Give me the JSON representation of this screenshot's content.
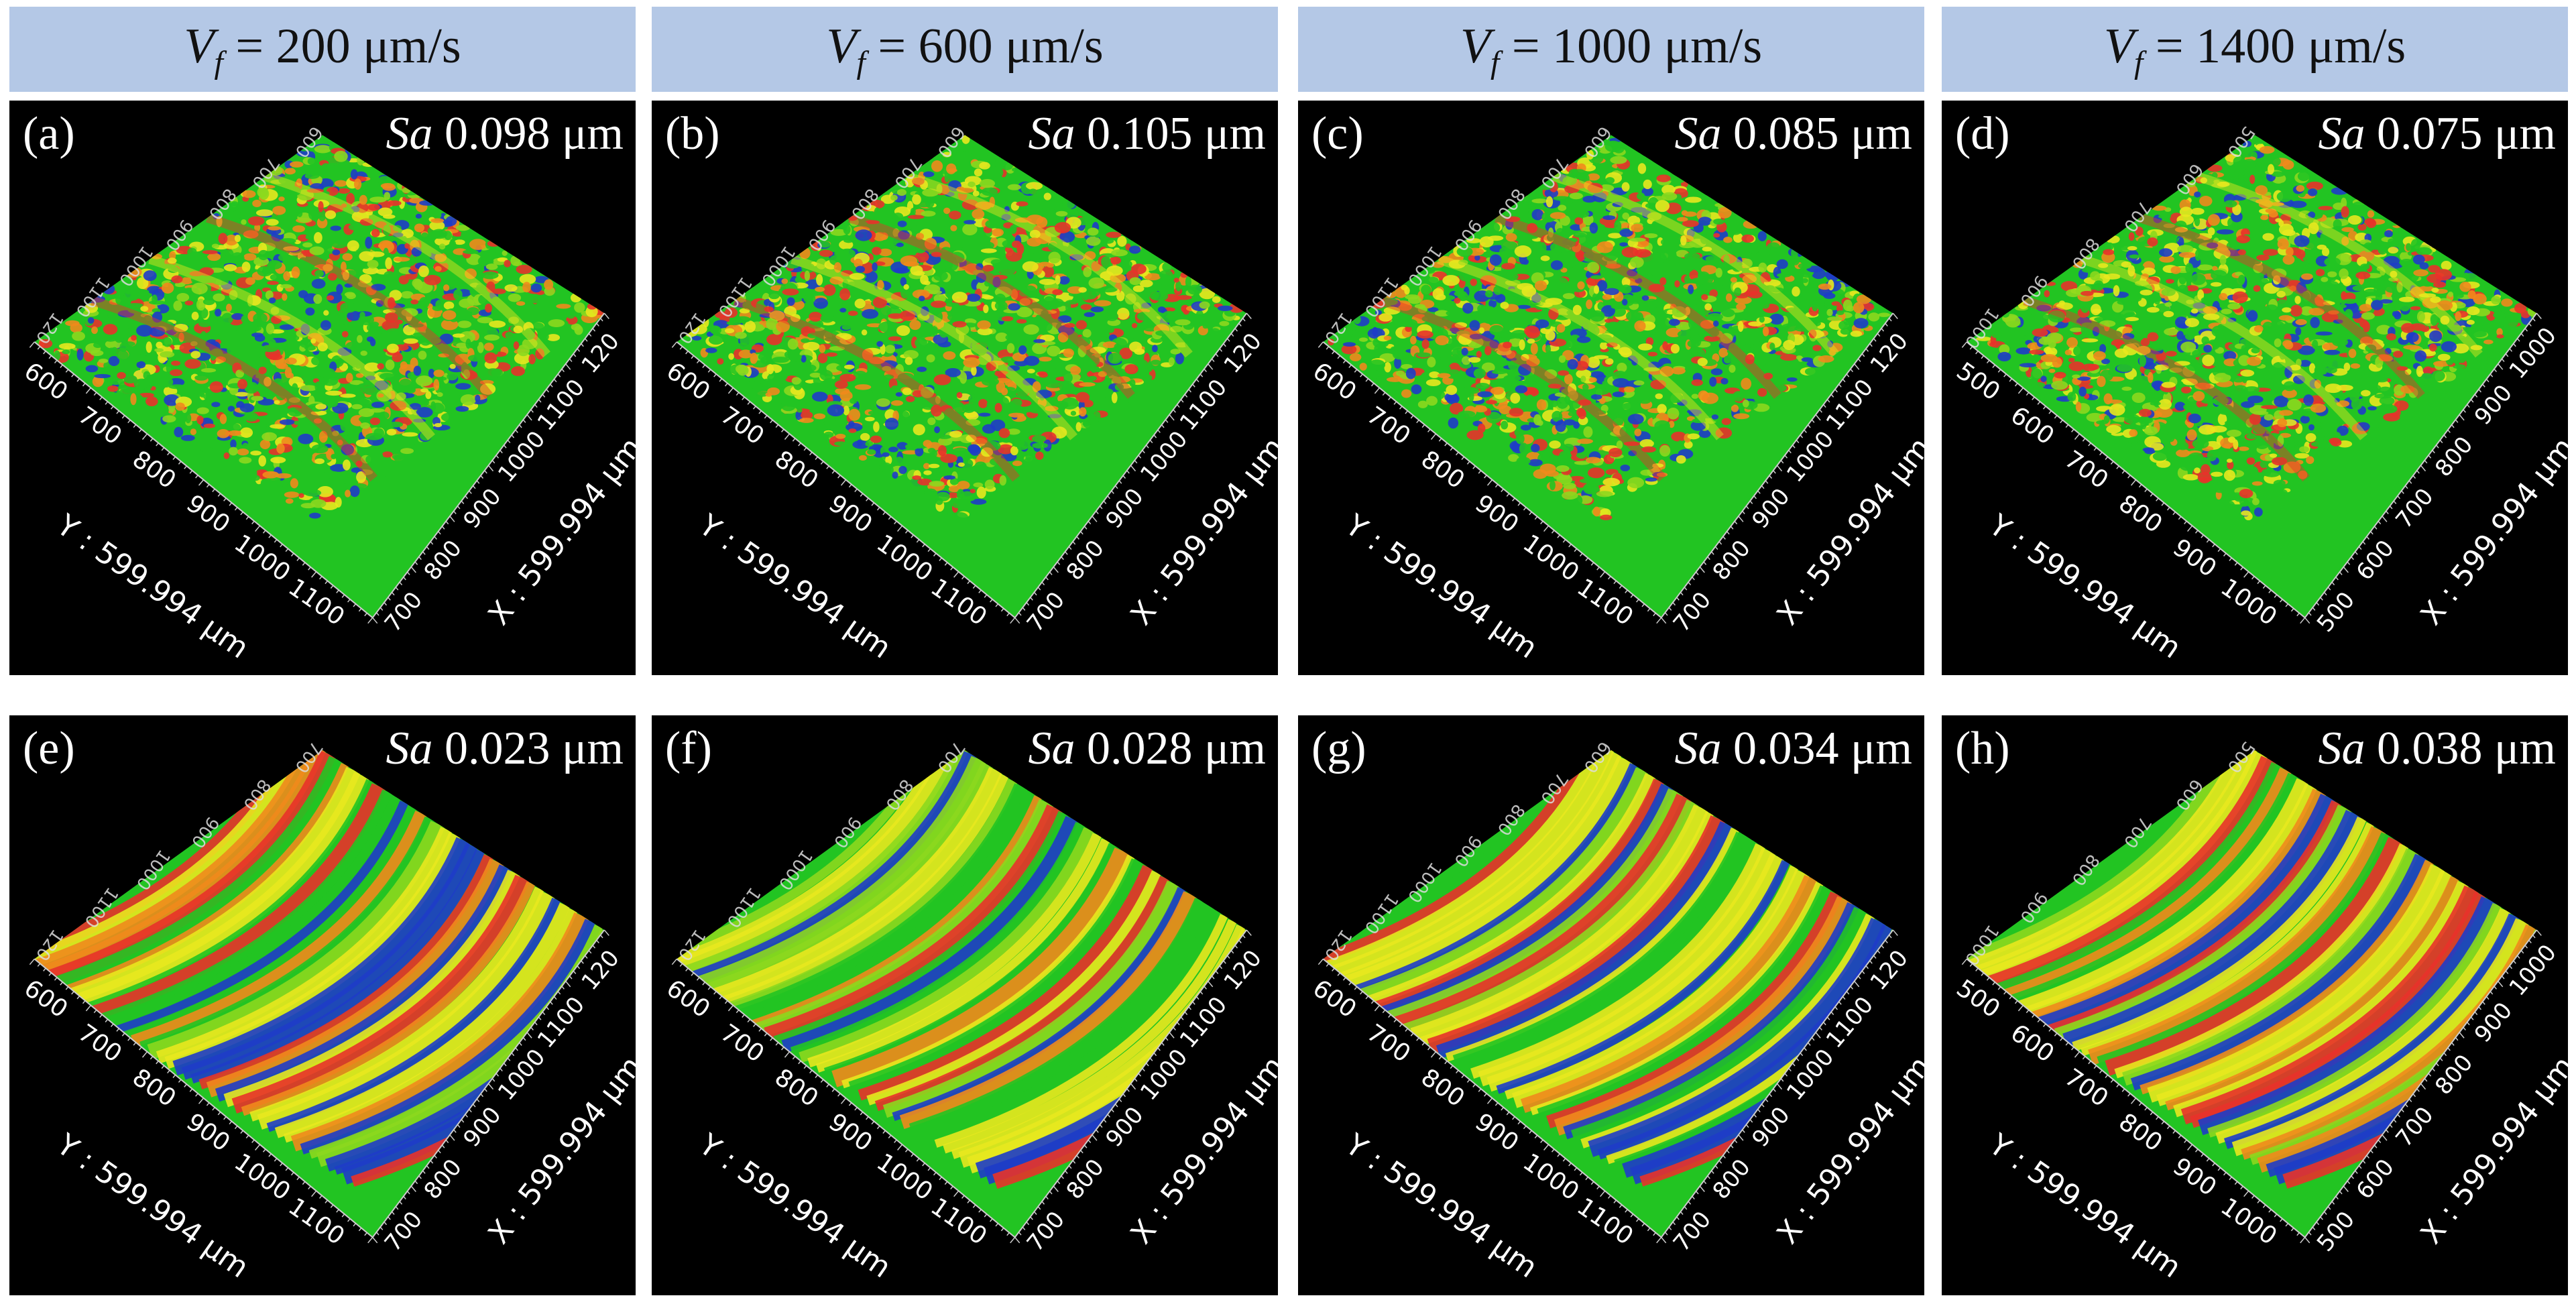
{
  "headers": [
    {
      "prefix": "V",
      "sub": "f",
      "value": "= 200 μm/s"
    },
    {
      "prefix": "V",
      "sub": "f",
      "value": "= 600 μm/s"
    },
    {
      "prefix": "V",
      "sub": "f",
      "value": "= 1000 μm/s"
    },
    {
      "prefix": "V",
      "sub": "f",
      "value": "= 1400 μm/s"
    }
  ],
  "sa_symbol": "Sa",
  "panels": [
    {
      "label": "(a)",
      "sa": "0.098 μm",
      "pattern": "dots",
      "yticks": [
        "600",
        "700",
        "800",
        "900",
        "1000",
        "1100"
      ],
      "xticks": [
        "700",
        "800",
        "900",
        "1000",
        "1100",
        "120"
      ],
      "topticks": [
        "120",
        "1100",
        "1000",
        "900",
        "800",
        "700",
        "600"
      ]
    },
    {
      "label": "(b)",
      "sa": "0.105 μm",
      "pattern": "dots",
      "yticks": [
        "600",
        "700",
        "800",
        "900",
        "1000",
        "1100"
      ],
      "xticks": [
        "700",
        "800",
        "900",
        "1000",
        "1100",
        "120"
      ],
      "topticks": [
        "120",
        "1100",
        "1000",
        "900",
        "800",
        "700",
        "600"
      ]
    },
    {
      "label": "(c)",
      "sa": "0.085 μm",
      "pattern": "dots",
      "yticks": [
        "600",
        "700",
        "800",
        "900",
        "1000",
        "1100"
      ],
      "xticks": [
        "700",
        "800",
        "900",
        "1000",
        "1100",
        "120"
      ],
      "topticks": [
        "120",
        "1100",
        "1000",
        "900",
        "800",
        "700",
        "600"
      ]
    },
    {
      "label": "(d)",
      "sa": "0.075 μm",
      "pattern": "dots",
      "yticks": [
        "500",
        "600",
        "700",
        "800",
        "900",
        "1000"
      ],
      "xticks": [
        "500",
        "600",
        "700",
        "800",
        "900",
        "1000"
      ],
      "topticks": [
        "1000",
        "900",
        "800",
        "700",
        "600",
        "500"
      ]
    },
    {
      "label": "(e)",
      "sa": "0.023 μm",
      "pattern": "stripes",
      "yticks": [
        "600",
        "700",
        "800",
        "900",
        "1000",
        "1100"
      ],
      "xticks": [
        "700",
        "800",
        "900",
        "1000",
        "1100",
        "120"
      ],
      "topticks": [
        "120",
        "1100",
        "1000",
        "900",
        "800",
        "700"
      ]
    },
    {
      "label": "(f)",
      "sa": "0.028 μm",
      "pattern": "stripes",
      "yticks": [
        "600",
        "700",
        "800",
        "900",
        "1000",
        "1100"
      ],
      "xticks": [
        "700",
        "800",
        "900",
        "1000",
        "1100",
        "120"
      ],
      "topticks": [
        "120",
        "1100",
        "1000",
        "900",
        "800",
        "700"
      ]
    },
    {
      "label": "(g)",
      "sa": "0.034 μm",
      "pattern": "stripes",
      "yticks": [
        "600",
        "700",
        "800",
        "900",
        "1000",
        "1100"
      ],
      "xticks": [
        "700",
        "800",
        "900",
        "1000",
        "1100",
        "120"
      ],
      "topticks": [
        "120",
        "1100",
        "1000",
        "900",
        "800",
        "700",
        "600"
      ]
    },
    {
      "label": "(h)",
      "sa": "0.038 μm",
      "pattern": "stripes",
      "yticks": [
        "500",
        "600",
        "700",
        "800",
        "900",
        "1000"
      ],
      "xticks": [
        "500",
        "600",
        "700",
        "800",
        "900",
        "1000"
      ],
      "topticks": [
        "1000",
        "900",
        "800",
        "700",
        "600",
        "500"
      ]
    }
  ],
  "axis_y_label": "Y : 599.994 μm",
  "axis_x_label": "X : 599.994 μm",
  "colors": {
    "header_bg": "#b4c8e6",
    "panel_bg": "#000000",
    "red": "#e8322a",
    "orange": "#f08a1c",
    "yellow": "#e8e81e",
    "green": "#22c422",
    "lime": "#8cd81e",
    "blue": "#1e3cc8"
  }
}
